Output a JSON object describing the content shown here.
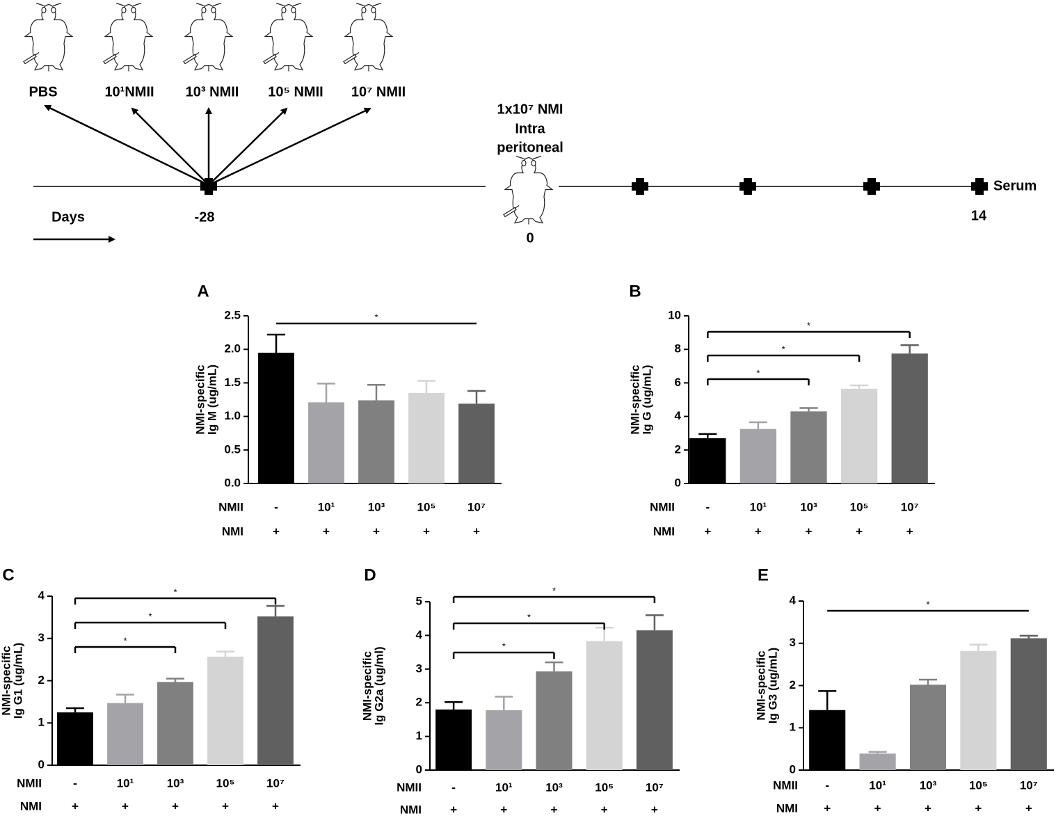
{
  "diagram": {
    "groups": [
      "PBS",
      "10¹NMII",
      "10³ NMII",
      "10⁵ NMII",
      "10⁷ NMII"
    ],
    "challenge": [
      "1x10⁷ NMI",
      "Intra",
      "peritoneal"
    ],
    "axis_label": "Days",
    "day_start": "-28",
    "day_challenge": "0",
    "day_end": "14",
    "endpoint": "Serum"
  },
  "chart_data": [
    {
      "type": "bar",
      "panel": "A",
      "y_label": [
        "NMI-specific",
        "Ig M (ug/mL)"
      ],
      "category_rows": [
        {
          "name": "NMII",
          "labels": [
            "-",
            "10¹",
            "10³",
            "10⁵",
            "10⁷"
          ]
        },
        {
          "name": "NMI",
          "labels": [
            "+",
            "+",
            "+",
            "+",
            "+"
          ]
        }
      ],
      "values": [
        1.95,
        1.21,
        1.24,
        1.35,
        1.19
      ],
      "errors": [
        0.27,
        0.28,
        0.23,
        0.18,
        0.19
      ],
      "colors": [
        "#000000",
        "#a3a3a8",
        "#808080",
        "#d4d4d4",
        "#606060"
      ],
      "ylim": [
        0,
        2.5
      ],
      "yticks": [
        {
          "value": 0,
          "label": "0.0"
        },
        {
          "value": 0.5,
          "label": "0.5"
        },
        {
          "value": 1,
          "label": "1.0"
        },
        {
          "value": 1.5,
          "label": "1.5"
        },
        {
          "value": 2,
          "label": "2.0"
        },
        {
          "value": 2.5,
          "label": "2.5"
        }
      ],
      "significance": [
        {
          "from": 0,
          "to": 4,
          "label": "*"
        }
      ],
      "bracket_ticks": false
    },
    {
      "type": "bar",
      "panel": "B",
      "y_label": [
        "NMI-specific",
        "Ig G (ug/mL)"
      ],
      "category_rows": [
        {
          "name": "NMII",
          "labels": [
            "-",
            "10¹",
            "10³",
            "10⁵",
            "10⁷"
          ]
        },
        {
          "name": "NMI",
          "labels": [
            "+",
            "+",
            "+",
            "+",
            "+"
          ]
        }
      ],
      "values": [
        2.7,
        3.25,
        4.3,
        5.65,
        7.75
      ],
      "errors": [
        0.25,
        0.4,
        0.2,
        0.2,
        0.5
      ],
      "colors": [
        "#000000",
        "#a3a3a8",
        "#808080",
        "#d4d4d4",
        "#606060"
      ],
      "ylim": [
        0,
        10
      ],
      "yticks": [
        0,
        2,
        4,
        6,
        8,
        10
      ],
      "significance": [
        {
          "from": 0,
          "to": 4,
          "label": "*"
        },
        {
          "from": 0,
          "to": 3,
          "label": "*"
        },
        {
          "from": 0,
          "to": 2,
          "label": "*"
        }
      ],
      "bracket_ticks": true
    },
    {
      "type": "bar",
      "panel": "C",
      "y_label": [
        "NMI-specific",
        "Ig G1 (ug/mL)"
      ],
      "category_rows": [
        {
          "name": "NMII",
          "labels": [
            "-",
            "10¹",
            "10³",
            "10⁵",
            "10⁷"
          ]
        },
        {
          "name": "NMI",
          "labels": [
            "+",
            "+",
            "+",
            "+",
            "+"
          ]
        }
      ],
      "values": [
        1.25,
        1.47,
        1.97,
        2.57,
        3.52
      ],
      "errors": [
        0.1,
        0.2,
        0.08,
        0.12,
        0.25
      ],
      "colors": [
        "#000000",
        "#a3a3a8",
        "#808080",
        "#d4d4d4",
        "#606060"
      ],
      "ylim": [
        0,
        4
      ],
      "yticks": [
        0,
        1,
        2,
        3,
        4
      ],
      "significance": [
        {
          "from": 0,
          "to": 4,
          "label": "*"
        },
        {
          "from": 0,
          "to": 3,
          "label": "*"
        },
        {
          "from": 0,
          "to": 2,
          "label": "*"
        }
      ],
      "bracket_ticks": true
    },
    {
      "type": "bar",
      "panel": "D",
      "y_label": [
        "NMI-specific",
        "Ig G2a (ug/ml)"
      ],
      "category_rows": [
        {
          "name": "NMII",
          "labels": [
            "-",
            "10¹",
            "10³",
            "10⁵",
            "10⁷"
          ]
        },
        {
          "name": "NMI",
          "labels": [
            "+",
            "+",
            "+",
            "+",
            "+"
          ]
        }
      ],
      "values": [
        1.8,
        1.78,
        2.93,
        3.83,
        4.15
      ],
      "errors": [
        0.22,
        0.4,
        0.27,
        0.4,
        0.45
      ],
      "colors": [
        "#000000",
        "#a3a3a8",
        "#808080",
        "#d4d4d4",
        "#606060"
      ],
      "ylim": [
        0,
        5
      ],
      "yticks": [
        0,
        1,
        2,
        3,
        4,
        5
      ],
      "significance": [
        {
          "from": 0,
          "to": 4,
          "label": "*"
        },
        {
          "from": 0,
          "to": 3,
          "label": "*"
        },
        {
          "from": 0,
          "to": 2,
          "label": "*"
        }
      ],
      "bracket_ticks": true
    },
    {
      "type": "bar",
      "panel": "E",
      "y_label": [
        "NMI-specific",
        "Ig G3 (ug/mL)"
      ],
      "category_rows": [
        {
          "name": "NMII",
          "labels": [
            "-",
            "10¹",
            "10³",
            "10⁵",
            "10⁷"
          ]
        },
        {
          "name": "NMI",
          "labels": [
            "+",
            "+",
            "+",
            "+",
            "+"
          ]
        }
      ],
      "values": [
        1.42,
        0.39,
        2.02,
        2.82,
        3.12
      ],
      "errors": [
        0.45,
        0.04,
        0.12,
        0.15,
        0.06
      ],
      "colors": [
        "#000000",
        "#a3a3a8",
        "#808080",
        "#d4d4d4",
        "#606060"
      ],
      "ylim": [
        0,
        4
      ],
      "yticks": [
        0,
        1,
        2,
        3,
        4
      ],
      "significance": [
        {
          "from": 0,
          "to": 4,
          "label": "*"
        }
      ],
      "bracket_ticks": false
    }
  ]
}
